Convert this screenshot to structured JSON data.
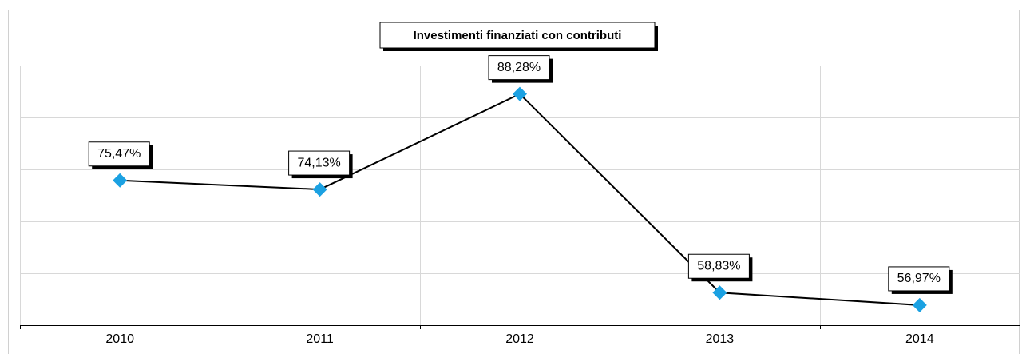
{
  "chart_data": {
    "type": "line",
    "title": "Investimenti finanziati con contributi",
    "categories": [
      "2010",
      "2011",
      "2012",
      "2013",
      "2014"
    ],
    "values": [
      75.47,
      74.13,
      88.28,
      58.83,
      56.97
    ],
    "value_labels": [
      "75,47%",
      "74,13%",
      "88,28%",
      "58,83%",
      "56,97%"
    ],
    "color": "#000000",
    "marker_color": "#1ba1e2",
    "ylim": [
      54,
      92.5
    ],
    "yticks": [
      54,
      61.7,
      69.4,
      77.1,
      84.8,
      92.5
    ],
    "grid": true
  }
}
